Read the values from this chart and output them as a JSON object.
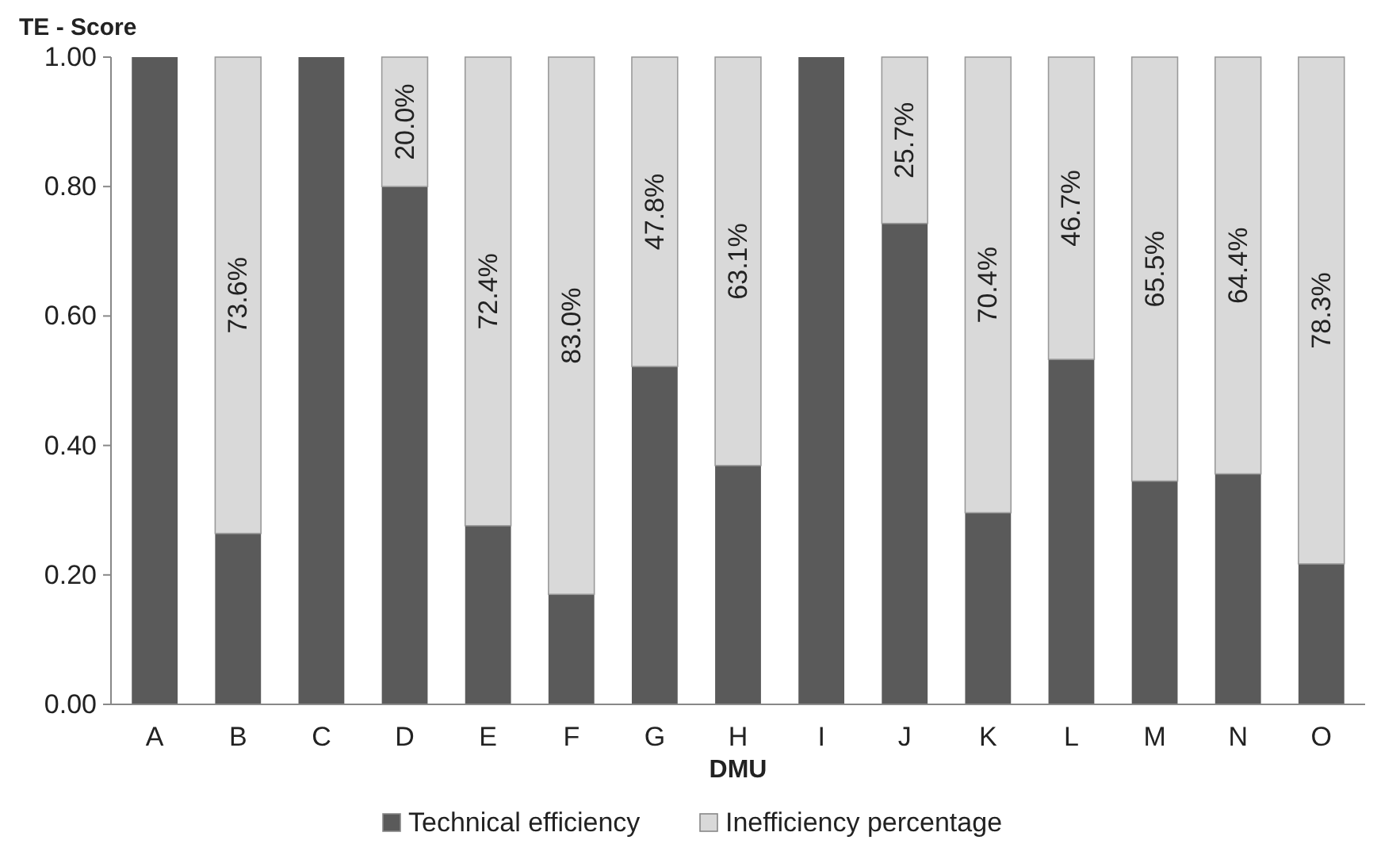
{
  "chart_data": {
    "type": "bar",
    "stacked": true,
    "ylabel": "TE - Score",
    "xlabel": "DMU",
    "categories": [
      "A",
      "B",
      "C",
      "D",
      "E",
      "F",
      "G",
      "H",
      "I",
      "J",
      "K",
      "L",
      "M",
      "N",
      "O"
    ],
    "series": [
      {
        "name": "Technical efficiency",
        "color": "#5a5a5a",
        "values": [
          1,
          0.264,
          1,
          0.8,
          0.276,
          0.17,
          0.522,
          0.369,
          1,
          0.743,
          0.296,
          0.533,
          0.345,
          0.356,
          0.217
        ]
      },
      {
        "name": "Inefficiency percentage",
        "color": "#d9d9d9",
        "values": [
          0,
          0.736,
          0,
          0.2,
          0.724,
          0.83,
          0.478,
          0.631,
          0,
          0.257,
          0.704,
          0.467,
          0.655,
          0.644,
          0.783
        ],
        "value_labels": [
          null,
          "73.6%",
          null,
          "20.0%",
          "72.4%",
          "83.0%",
          "47.8%",
          "63.1%",
          null,
          "25.7%",
          "70.4%",
          "46.7%",
          "65.5%",
          "64.4%",
          "78.3%"
        ]
      }
    ],
    "ylim": [
      0,
      1
    ],
    "yticks": [
      {
        "value": 0,
        "label": "0.00"
      },
      {
        "value": 0.2,
        "label": "0.20"
      },
      {
        "value": 0.4,
        "label": "0.40"
      },
      {
        "value": 0.6,
        "label": "0.60"
      },
      {
        "value": 0.8,
        "label": "0.80"
      },
      {
        "value": 1,
        "label": "1.00"
      }
    ],
    "grid": false,
    "legend": "bottom"
  }
}
